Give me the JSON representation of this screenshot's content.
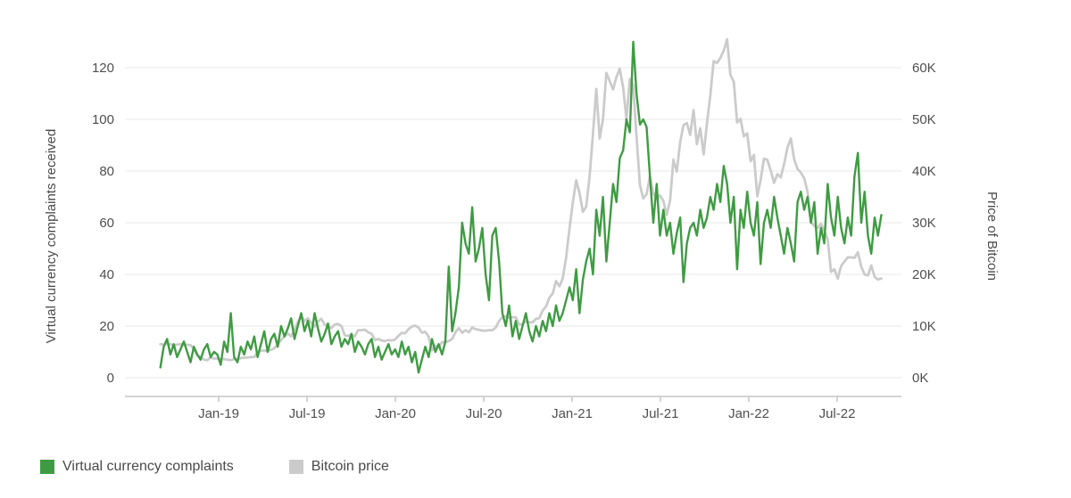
{
  "colors": {
    "complaints_green": "#3f9b43",
    "bitcoin_gray": "#cbcbcb",
    "grid": "#e7e7e7",
    "axis_line": "#c6c6c6",
    "tick_text": "#4f4f4f",
    "axis_title_text": "#4a4a4a",
    "background": "#ffffff"
  },
  "chart_data": {
    "type": "line",
    "title": "",
    "x_axis": {
      "tick_labels": [
        "Jan-19",
        "Jul-19",
        "Jan-20",
        "Jul-20",
        "Jan-21",
        "Jul-21",
        "Jan-22",
        "Jul-22"
      ],
      "tick_positions": [
        2019.0,
        2019.5,
        2020.0,
        2020.5,
        2021.0,
        2021.5,
        2022.0,
        2022.5
      ]
    },
    "left_axis": {
      "label": "Virtual currency complaints received",
      "ticks": [
        0,
        20,
        40,
        60,
        80,
        100,
        120
      ],
      "range": [
        0,
        130
      ]
    },
    "right_axis": {
      "label": "Price of Bitcoin",
      "ticks": [
        0,
        10,
        20,
        30,
        40,
        50,
        60
      ],
      "tick_labels": [
        "0K",
        "10K",
        "20K",
        "30K",
        "40K",
        "50K",
        "60K"
      ],
      "range": [
        0,
        65.5
      ]
    },
    "x_start": 2018.67,
    "x_end": 2022.75,
    "grid": true,
    "legend_position": "bottom-left",
    "series": [
      {
        "name": "Virtual currency complaints",
        "axis": "left",
        "color": "#3f9b43",
        "values": [
          4,
          12,
          15,
          9,
          13,
          8,
          11,
          14,
          10,
          6,
          12,
          9,
          7,
          11,
          13,
          8,
          10,
          9,
          5,
          14,
          10,
          25,
          8,
          6,
          12,
          9,
          14,
          11,
          16,
          8,
          13,
          18,
          10,
          15,
          17,
          12,
          20,
          16,
          19,
          23,
          15,
          20,
          25,
          18,
          22,
          16,
          25,
          19,
          14,
          17,
          21,
          13,
          16,
          18,
          12,
          15,
          13,
          17,
          10,
          14,
          12,
          9,
          13,
          15,
          8,
          12,
          7,
          10,
          13,
          9,
          11,
          8,
          14,
          9,
          12,
          6,
          10,
          2,
          7,
          12,
          8,
          15,
          10,
          13,
          9,
          14,
          43,
          18,
          25,
          35,
          60,
          52,
          48,
          66,
          45,
          50,
          58,
          40,
          30,
          55,
          58,
          45,
          25,
          20,
          28,
          16,
          22,
          15,
          20,
          25,
          18,
          14,
          20,
          16,
          22,
          18,
          25,
          20,
          28,
          22,
          25,
          30,
          35,
          30,
          42,
          25,
          38,
          45,
          50,
          40,
          65,
          55,
          70,
          45,
          60,
          75,
          68,
          85,
          88,
          100,
          95,
          130,
          110,
          98,
          100,
          97,
          78,
          60,
          75,
          55,
          65,
          55,
          60,
          48,
          56,
          62,
          37,
          52,
          58,
          60,
          55,
          65,
          58,
          62,
          70,
          65,
          75,
          68,
          82,
          75,
          60,
          70,
          42,
          65,
          58,
          72,
          60,
          55,
          68,
          44,
          60,
          65,
          58,
          70,
          62,
          55,
          48,
          58,
          52,
          45,
          68,
          72,
          65,
          70,
          60,
          68,
          48,
          58,
          52,
          75,
          62,
          55,
          70,
          58,
          52,
          62,
          55,
          78,
          87,
          60,
          72,
          55,
          48,
          62,
          55,
          63
        ]
      },
      {
        "name": "Bitcoin price",
        "axis": "right",
        "color": "#cbcbcb",
        "values": [
          6.5,
          6.4,
          6.6,
          6.5,
          6.3,
          6.4,
          6.5,
          6.4,
          6.4,
          6.3,
          5.6,
          4.3,
          4.0,
          3.5,
          3.4,
          3.9,
          3.7,
          3.7,
          3.6,
          3.6,
          3.5,
          3.4,
          3.6,
          3.6,
          3.8,
          3.9,
          3.9,
          4.0,
          4.0,
          4.9,
          5.2,
          5.3,
          5.2,
          5.4,
          5.7,
          6.4,
          7.3,
          8.0,
          8.6,
          8.0,
          9.3,
          10.8,
          11.9,
          11.0,
          11.5,
          10.6,
          9.9,
          10.9,
          11.4,
          10.3,
          10.1,
          9.6,
          10.3,
          10.4,
          10.0,
          8.2,
          8.1,
          8.3,
          8.0,
          9.2,
          9.2,
          9.3,
          8.8,
          8.5,
          7.3,
          7.5,
          7.2,
          7.1,
          7.3,
          7.2,
          7.4,
          8.1,
          8.7,
          8.6,
          9.4,
          9.9,
          10.1,
          9.7,
          8.7,
          8.9,
          7.9,
          5.3,
          6.2,
          5.9,
          6.9,
          6.9,
          7.1,
          7.5,
          8.8,
          9.6,
          8.7,
          9.2,
          8.8,
          9.7,
          9.4,
          9.3,
          9.1,
          9.1,
          9.2,
          9.2,
          9.7,
          11.0,
          11.7,
          11.9,
          11.6,
          11.7,
          11.7,
          10.3,
          10.4,
          10.9,
          10.7,
          10.7,
          11.4,
          11.5,
          13.0,
          13.8,
          15.5,
          16.3,
          18.7,
          17.7,
          19.2,
          23.2,
          28.9,
          33.9,
          38.2,
          35.8,
          32.1,
          33.1,
          38.9,
          47.2,
          55.9,
          46.3,
          50.0,
          59.0,
          57.4,
          55.8,
          58.2,
          59.8,
          56.2,
          50.0,
          57.8,
          56.6,
          46.7,
          37.3,
          34.7,
          35.5,
          39.0,
          35.6,
          34.7,
          35.3,
          34.2,
          31.5,
          34.3,
          42.2,
          39.9,
          45.6,
          48.9,
          49.3,
          47.0,
          51.8,
          45.2,
          48.3,
          43.2,
          49.2,
          54.7,
          61.3,
          60.9,
          61.9,
          63.3,
          65.5,
          58.6,
          57.3,
          49.4,
          50.1,
          46.7,
          47.3,
          41.9,
          43.1,
          35.1,
          38.2,
          42.4,
          42.2,
          40.1,
          37.7,
          39.4,
          38.8,
          41.3,
          44.5,
          46.3,
          42.3,
          40.4,
          39.7,
          38.6,
          36.0,
          30.1,
          29.4,
          29.0,
          29.8,
          28.4,
          26.8,
          20.5,
          21.0,
          19.2,
          21.6,
          22.5,
          23.3,
          23.3,
          23.2,
          24.3,
          21.5,
          20.0,
          19.8,
          21.7,
          19.5,
          19.0,
          19.2
        ]
      }
    ],
    "legend": [
      {
        "label": "Virtual currency complaints",
        "color": "#3f9b43"
      },
      {
        "label": "Bitcoin price",
        "color": "#cbcbcb"
      }
    ]
  }
}
